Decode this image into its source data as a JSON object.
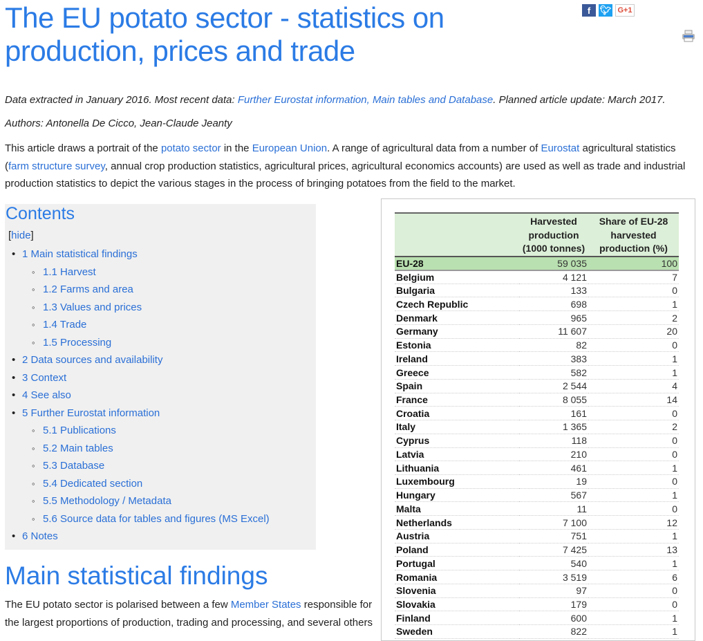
{
  "title": "The EU potato sector - statistics on production, prices and trade",
  "share": {
    "facebook": "f",
    "twitter": "t",
    "gplus": "G+1"
  },
  "meta": {
    "extracted_prefix": "Data extracted in January 2016. Most recent data: ",
    "extracted_link": "Further Eurostat information, Main tables and Database",
    "extracted_suffix": ". Planned article update: March 2017.",
    "authors": "Authors: Antonella De Cicco, Jean-Claude Jeanty"
  },
  "intro": [
    {
      "t": "This article draws a portrait of the "
    },
    {
      "l": "potato sector"
    },
    {
      "t": " in the "
    },
    {
      "l": "European Union"
    },
    {
      "t": ". A range of agricultural data from a number of "
    },
    {
      "l": "Eurostat"
    },
    {
      "t": " agricultural statistics ("
    },
    {
      "l": "farm structure survey"
    },
    {
      "t": ", annual crop production statistics, agricultural prices, agricultural economics accounts) are used as well as trade and industrial production statistics to depict the various stages in the process of bringing potatoes from the field to the market."
    }
  ],
  "toc": {
    "title": "Contents",
    "hide": "hide",
    "items": [
      {
        "level": 1,
        "label": "1 Main statistical findings"
      },
      {
        "level": 2,
        "label": "1.1 Harvest"
      },
      {
        "level": 2,
        "label": "1.2 Farms and area"
      },
      {
        "level": 2,
        "label": "1.3 Values and prices"
      },
      {
        "level": 2,
        "label": "1.4 Trade"
      },
      {
        "level": 2,
        "label": "1.5 Processing"
      },
      {
        "level": 1,
        "label": "2 Data sources and availability"
      },
      {
        "level": 1,
        "label": "3 Context"
      },
      {
        "level": 1,
        "label": "4 See also"
      },
      {
        "level": 1,
        "label": "5 Further Eurostat information"
      },
      {
        "level": 2,
        "label": "5.1 Publications"
      },
      {
        "level": 2,
        "label": "5.2 Main tables"
      },
      {
        "level": 2,
        "label": "5.3 Database"
      },
      {
        "level": 2,
        "label": "5.4 Dedicated section"
      },
      {
        "level": 2,
        "label": "5.5 Methodology / Metadata"
      },
      {
        "level": 2,
        "label": "5.6 Source data for tables and figures (MS Excel)"
      },
      {
        "level": 1,
        "label": "6 Notes"
      }
    ]
  },
  "section": {
    "title": "Main statistical findings",
    "body": [
      {
        "t": "The EU potato sector is polarised between a few "
      },
      {
        "l": "Member States"
      },
      {
        "t": " responsible for the largest proportions of production, trading and processing, and several others"
      }
    ]
  },
  "table": {
    "headers": [
      "",
      "Harvested production (1000 tonnes)",
      "Share of EU-28 harvested production (%)"
    ],
    "rows": [
      [
        "EU-28",
        "59 035",
        "100"
      ],
      [
        "Belgium",
        "4 121",
        "7"
      ],
      [
        "Bulgaria",
        "133",
        "0"
      ],
      [
        "Czech Republic",
        "698",
        "1"
      ],
      [
        "Denmark",
        "965",
        "2"
      ],
      [
        "Germany",
        "11 607",
        "20"
      ],
      [
        "Estonia",
        "82",
        "0"
      ],
      [
        "Ireland",
        "383",
        "1"
      ],
      [
        "Greece",
        "582",
        "1"
      ],
      [
        "Spain",
        "2 544",
        "4"
      ],
      [
        "France",
        "8 055",
        "14"
      ],
      [
        "Croatia",
        "161",
        "0"
      ],
      [
        "Italy",
        "1 365",
        "2"
      ],
      [
        "Cyprus",
        "118",
        "0"
      ],
      [
        "Latvia",
        "210",
        "0"
      ],
      [
        "Lithuania",
        "461",
        "1"
      ],
      [
        "Luxembourg",
        "19",
        "0"
      ],
      [
        "Hungary",
        "567",
        "1"
      ],
      [
        "Malta",
        "11",
        "0"
      ],
      [
        "Netherlands",
        "7 100",
        "12"
      ],
      [
        "Austria",
        "751",
        "1"
      ],
      [
        "Poland",
        "7 425",
        "13"
      ],
      [
        "Portugal",
        "540",
        "1"
      ],
      [
        "Romania",
        "3 519",
        "6"
      ],
      [
        "Slovenia",
        "97",
        "0"
      ],
      [
        "Slovakia",
        "179",
        "0"
      ],
      [
        "Finland",
        "600",
        "1"
      ],
      [
        "Sweden",
        "822",
        "1"
      ]
    ]
  }
}
